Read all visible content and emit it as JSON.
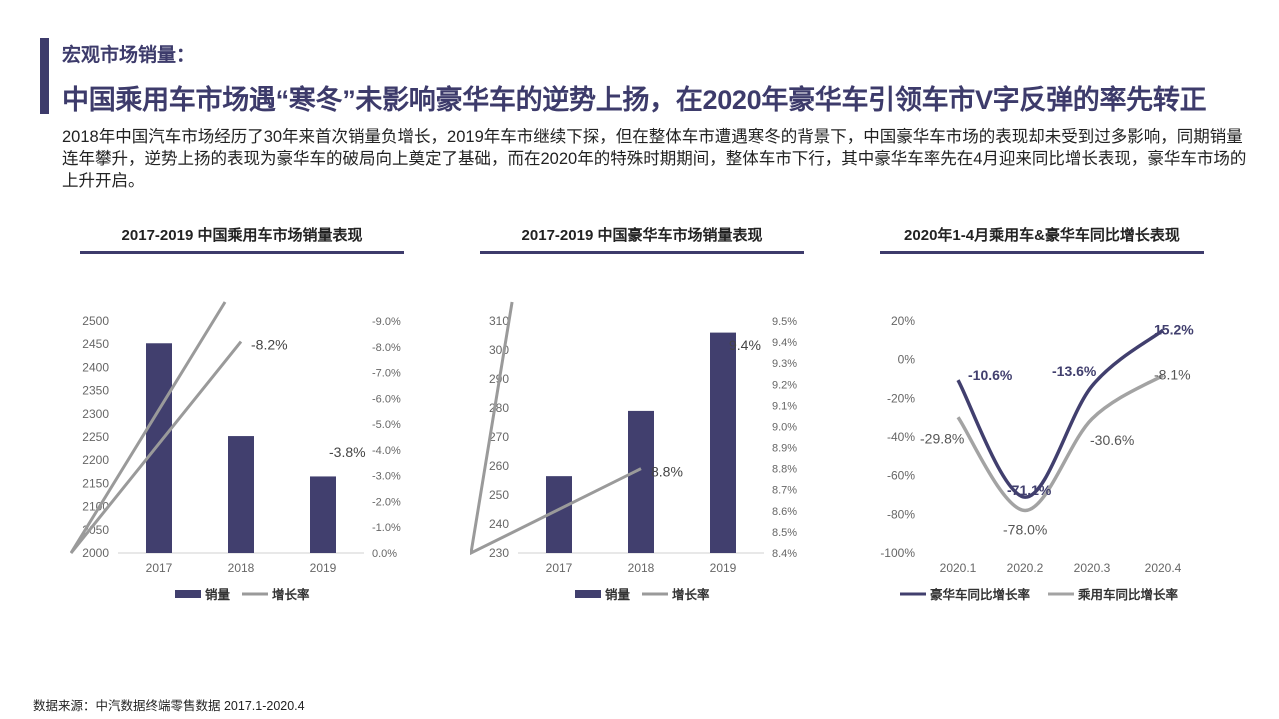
{
  "header": {
    "kicker": "宏观市场销量：",
    "title": "中国乘用车市场遇“寒冬”未影响豪华车的逆势上扬，在2020年豪华车引领车市V字反弹的率先转正",
    "intro": "2018年中国汽车市场经历了30年来首次销量负增长，2019年车市继续下探，但在整体车市遭遇寒冬的背景下，中国豪华车市场的表现却未受到过多影响，同期销量连年攀升，逆势上扬的表现为豪华车的破局向上奠定了基础，而在2020年的特殊时期期间，整体车市下行，其中豪华车率先在4月迎来同比增长表现，豪华车市场的上升开启。"
  },
  "footer": {
    "source": "数据来源：中汽数据终端零售数据 2017.1-2020.4"
  },
  "colors": {
    "bar": "#413f6e",
    "growth_line": "#9a9a9a",
    "luxury_line": "#413f6e",
    "passenger_line": "#a3a3a3",
    "accent": "#3d3b6b"
  },
  "chart_data": [
    {
      "type": "bar",
      "title": "2017-2019 中国乘用车市场销量表现",
      "categories": [
        "2017",
        "2018",
        "2019"
      ],
      "series": [
        {
          "name": "销量",
          "type": "bar",
          "axis": "left",
          "values": [
            2452,
            2252,
            2165
          ]
        },
        {
          "name": "增长率",
          "type": "line",
          "axis": "right",
          "values": [
            null,
            -8.2,
            -3.8
          ],
          "labels": [
            "",
            "-8.2%",
            "-3.8%"
          ]
        }
      ],
      "ylim": [
        2000,
        2500
      ],
      "y_ticks": [
        "2500",
        "2450",
        "2400",
        "2350",
        "2300",
        "2250",
        "2200",
        "2150",
        "2100",
        "2050",
        "2000"
      ],
      "y2lim": [
        0,
        -9.0
      ],
      "y2_ticks": [
        "-9.0%",
        "-8.0%",
        "-7.0%",
        "-6.0%",
        "-5.0%",
        "-4.0%",
        "-3.0%",
        "-2.0%",
        "-1.0%",
        "0.0%"
      ],
      "legend": [
        "销量",
        "增长率"
      ],
      "legend_position": "bottom"
    },
    {
      "type": "bar",
      "title": "2017-2019 中国豪华车市场销量表现",
      "categories": [
        "2017",
        "2018",
        "2019"
      ],
      "series": [
        {
          "name": "销量",
          "type": "bar",
          "axis": "left",
          "values": [
            256.5,
            279,
            306
          ]
        },
        {
          "name": "增长率",
          "type": "line",
          "axis": "right",
          "values": [
            null,
            8.8,
            9.4
          ],
          "labels": [
            "",
            "8.8%",
            "9.4%"
          ]
        }
      ],
      "ylim": [
        230,
        310
      ],
      "y_ticks": [
        "310",
        "300",
        "290",
        "280",
        "270",
        "260",
        "250",
        "240",
        "230"
      ],
      "y2lim": [
        8.4,
        9.5
      ],
      "y2_ticks": [
        "9.5%",
        "9.4%",
        "9.3%",
        "9.2%",
        "9.1%",
        "9.0%",
        "8.9%",
        "8.8%",
        "8.7%",
        "8.6%",
        "8.5%",
        "8.4%"
      ],
      "legend": [
        "销量",
        "增长率"
      ],
      "legend_position": "bottom"
    },
    {
      "type": "line",
      "title": "2020年1-4月乘用车&豪华车同比增长表现",
      "categories": [
        "2020.1",
        "2020.2",
        "2020.3",
        "2020.4"
      ],
      "series": [
        {
          "name": "豪华车同比增长率",
          "values": [
            -10.6,
            -71.1,
            -13.6,
            15.2
          ],
          "labels": [
            "-10.6%",
            "-71.1%",
            "-13.6%",
            "15.2%"
          ]
        },
        {
          "name": "乘用车同比增长率",
          "values": [
            -29.8,
            -78.0,
            -30.6,
            -8.1
          ],
          "labels": [
            "-29.8%",
            "-78.0%",
            "-30.6%",
            "-8.1%"
          ]
        }
      ],
      "ylim": [
        -100,
        20
      ],
      "y_ticks": [
        "20%",
        "0%",
        "-20%",
        "-40%",
        "-60%",
        "-80%",
        "-100%"
      ],
      "legend": [
        "豪华车同比增长率",
        "乘用车同比增长率"
      ],
      "legend_position": "bottom"
    }
  ]
}
